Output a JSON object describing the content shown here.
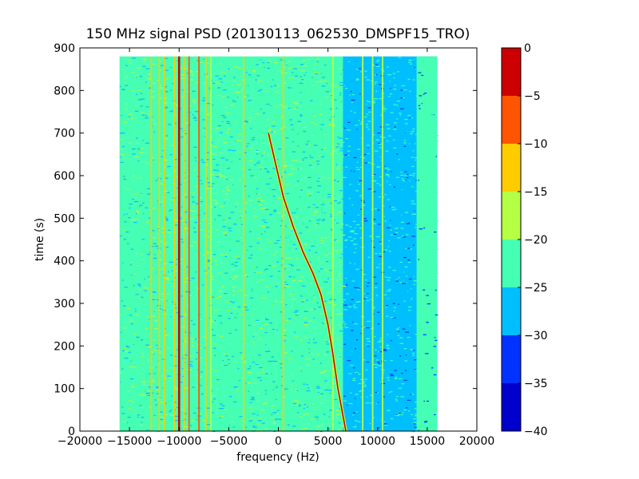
{
  "chart_data": {
    "type": "heatmap",
    "title": "150 MHz signal PSD (20130113_062530_DMSPF15_TRO)",
    "xlabel": "frequency (Hz)",
    "ylabel": "time (s)",
    "xlim": [
      -20000,
      20000
    ],
    "ylim": [
      0,
      900
    ],
    "xticks": [
      -20000,
      -15000,
      -10000,
      -5000,
      0,
      5000,
      10000,
      15000,
      20000
    ],
    "xtick_labels": [
      "−20000",
      "−15000",
      "−10000",
      "−5000",
      "0",
      "5000",
      "10000",
      "15000",
      "20000"
    ],
    "yticks": [
      0,
      100,
      200,
      300,
      400,
      500,
      600,
      700,
      800,
      900
    ],
    "ytick_labels": [
      "0",
      "100",
      "200",
      "300",
      "400",
      "500",
      "600",
      "700",
      "800",
      "900"
    ],
    "data_extent": {
      "x": [
        -16000,
        16000
      ],
      "y": [
        0,
        880
      ]
    },
    "colorbar": {
      "levels": [
        -40,
        -35,
        -30,
        -25,
        -20,
        -15,
        -10,
        -5,
        0
      ],
      "tick_labels": [
        "−40",
        "−35",
        "−30",
        "−25",
        "−20",
        "−15",
        "−10",
        "−5",
        "0"
      ],
      "colors": [
        "#0000cc",
        "#0033ff",
        "#00bfff",
        "#45ffb5",
        "#b5ff45",
        "#ffcc00",
        "#ff5500",
        "#cc0000"
      ]
    },
    "background_level_db": {
      "low_freq_band": -22.5,
      "high_freq_band": -27.5
    },
    "vertical_lines": [
      {
        "freq": -12800,
        "level": -12.5
      },
      {
        "freq": -12000,
        "level": -12.5
      },
      {
        "freq": -11500,
        "level": -12.5
      },
      {
        "freq": -10500,
        "level": -12.5
      },
      {
        "freq": -10000,
        "level": -2.5
      },
      {
        "freq": -9500,
        "level": -12.5
      },
      {
        "freq": -9000,
        "level": -7.5
      },
      {
        "freq": -8000,
        "level": -7.5
      },
      {
        "freq": -7300,
        "level": -12.5
      },
      {
        "freq": -6800,
        "level": -17.5
      },
      {
        "freq": -3500,
        "level": -12.5
      },
      {
        "freq": 500,
        "level": -12.5
      },
      {
        "freq": 5500,
        "level": -17.5
      },
      {
        "freq": 8500,
        "level": -17.5
      },
      {
        "freq": 9500,
        "level": -17.5
      },
      {
        "freq": 10500,
        "level": -17.5
      },
      {
        "freq": 14000,
        "level": -22.5
      }
    ],
    "doppler_trace": {
      "level": -2.5,
      "points": [
        [
          -1000,
          700
        ],
        [
          0,
          600
        ],
        [
          500,
          550
        ],
        [
          1500,
          480
        ],
        [
          2500,
          420
        ],
        [
          3500,
          370
        ],
        [
          4300,
          320
        ],
        [
          5000,
          250
        ],
        [
          5500,
          180
        ],
        [
          6000,
          100
        ],
        [
          6800,
          0
        ]
      ]
    }
  }
}
